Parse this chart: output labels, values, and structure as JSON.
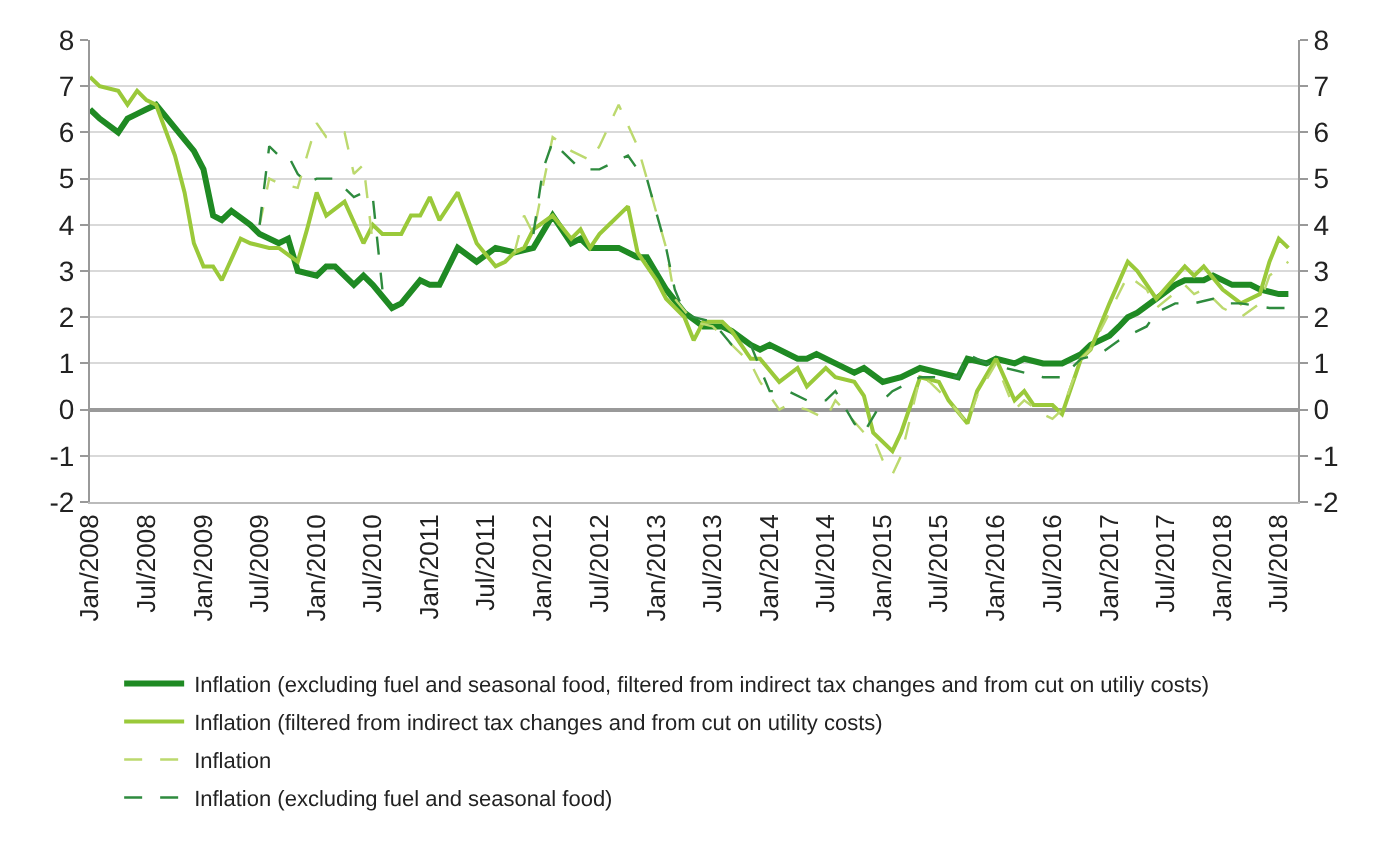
{
  "chart_data": {
    "type": "line",
    "legend": "bottom",
    "grid": "y",
    "marker": "none",
    "xlim": [
      "2008-01",
      "2018-09"
    ],
    "xticks": [
      {
        "value": "2008-01",
        "label": "Jan/2008"
      },
      {
        "value": "2008-07",
        "label": "Jul/2008"
      },
      {
        "value": "2009-01",
        "label": "Jan/2009"
      },
      {
        "value": "2009-07",
        "label": "Jul/2009"
      },
      {
        "value": "2010-01",
        "label": "Jan/2010"
      },
      {
        "value": "2010-07",
        "label": "Jul/2010"
      },
      {
        "value": "2011-01",
        "label": "Jan/2011"
      },
      {
        "value": "2011-07",
        "label": "Jul/2011"
      },
      {
        "value": "2012-01",
        "label": "Jan/2012"
      },
      {
        "value": "2012-07",
        "label": "Jul/2012"
      },
      {
        "value": "2013-01",
        "label": "Jan/2013"
      },
      {
        "value": "2013-07",
        "label": "Jul/2013"
      },
      {
        "value": "2014-01",
        "label": "Jan/2014"
      },
      {
        "value": "2014-07",
        "label": "Jul/2014"
      },
      {
        "value": "2015-01",
        "label": "Jan/2015"
      },
      {
        "value": "2015-07",
        "label": "Jul/2015"
      },
      {
        "value": "2016-01",
        "label": "Jan/2016"
      },
      {
        "value": "2016-07",
        "label": "Jul/2016"
      },
      {
        "value": "2017-01",
        "label": "Jan/2017"
      },
      {
        "value": "2017-07",
        "label": "Jul/2017"
      },
      {
        "value": "2018-01",
        "label": "Jan/2018"
      },
      {
        "value": "2018-07",
        "label": "Jul/2018"
      }
    ],
    "ylim": [
      -2,
      8
    ],
    "yticks": [
      -2,
      -1,
      0,
      1,
      2,
      3,
      4,
      5,
      6,
      7,
      8
    ],
    "y2lim": [
      -2,
      8
    ],
    "y2ticks": [
      -2,
      -1,
      0,
      1,
      2,
      3,
      4,
      5,
      6,
      7,
      8
    ],
    "series": [
      {
        "name": "Inflation (excluding fuel and seasonal food, filtered from indirect tax changes and from cut on utiliy costs)",
        "color": "#1f8a23",
        "line_style": "solid",
        "x": [
          "2008-01",
          "2008-02",
          "2008-04",
          "2008-05",
          "2008-06",
          "2008-07",
          "2008-08",
          "2008-10",
          "2008-12",
          "2009-01",
          "2009-02",
          "2009-03",
          "2009-04",
          "2009-06",
          "2009-07",
          "2009-09",
          "2009-10",
          "2009-11",
          "2010-01",
          "2010-02",
          "2010-03",
          "2010-05",
          "2010-06",
          "2010-07",
          "2010-09",
          "2010-10",
          "2010-12",
          "2011-01",
          "2011-02",
          "2011-04",
          "2011-06",
          "2011-08",
          "2011-10",
          "2011-12",
          "2012-02",
          "2012-04",
          "2012-05",
          "2012-06",
          "2012-07",
          "2012-09",
          "2012-11",
          "2012-12",
          "2013-02",
          "2013-04",
          "2013-06",
          "2013-08",
          "2013-09",
          "2013-11",
          "2013-12",
          "2014-01",
          "2014-04",
          "2014-05",
          "2014-06",
          "2014-08",
          "2014-10",
          "2014-11",
          "2015-01",
          "2015-03",
          "2015-05",
          "2015-07",
          "2015-09",
          "2015-10",
          "2015-12",
          "2016-01",
          "2016-03",
          "2016-04",
          "2016-06",
          "2016-08",
          "2016-10",
          "2016-11",
          "2017-01",
          "2017-02",
          "2017-03",
          "2017-04",
          "2017-06",
          "2017-08",
          "2017-09",
          "2017-11",
          "2017-12",
          "2018-02",
          "2018-04",
          "2018-05",
          "2018-07",
          "2018-08"
        ],
        "values": [
          6.5,
          6.3,
          6.0,
          6.3,
          6.4,
          6.5,
          6.6,
          6.1,
          5.6,
          5.2,
          4.2,
          4.1,
          4.3,
          4.0,
          3.8,
          3.6,
          3.7,
          3.0,
          2.9,
          3.1,
          3.1,
          2.7,
          2.9,
          2.7,
          2.2,
          2.3,
          2.8,
          2.7,
          2.7,
          3.5,
          3.2,
          3.5,
          3.4,
          3.5,
          4.2,
          3.6,
          3.7,
          3.5,
          3.5,
          3.5,
          3.3,
          3.3,
          2.6,
          2.1,
          1.8,
          1.8,
          1.7,
          1.4,
          1.3,
          1.4,
          1.1,
          1.1,
          1.2,
          1.0,
          0.8,
          0.9,
          0.6,
          0.7,
          0.9,
          0.8,
          0.7,
          1.1,
          1.0,
          1.1,
          1.0,
          1.1,
          1.0,
          1.0,
          1.2,
          1.4,
          1.6,
          1.8,
          2.0,
          2.1,
          2.4,
          2.7,
          2.8,
          2.8,
          2.9,
          2.7,
          2.7,
          2.6,
          2.5,
          2.5
        ]
      },
      {
        "name": "Inflation (filtered from indirect tax changes and from cut on utility costs)",
        "color": "#9ac93a",
        "line_style": "solid",
        "x": [
          "2008-01",
          "2008-02",
          "2008-04",
          "2008-05",
          "2008-06",
          "2008-07",
          "2008-08",
          "2008-10",
          "2008-11",
          "2008-12",
          "2009-01",
          "2009-02",
          "2009-03",
          "2009-05",
          "2009-06",
          "2009-08",
          "2009-09",
          "2009-11",
          "2009-12",
          "2010-01",
          "2010-02",
          "2010-04",
          "2010-06",
          "2010-07",
          "2010-08",
          "2010-10",
          "2010-11",
          "2010-12",
          "2011-01",
          "2011-02",
          "2011-04",
          "2011-06",
          "2011-08",
          "2011-09",
          "2011-10",
          "2011-11",
          "2011-12",
          "2012-02",
          "2012-04",
          "2012-05",
          "2012-06",
          "2012-07",
          "2012-08",
          "2012-10",
          "2012-11",
          "2013-01",
          "2013-02",
          "2013-04",
          "2013-05",
          "2013-06",
          "2013-08",
          "2013-09",
          "2013-11",
          "2013-12",
          "2014-02",
          "2014-04",
          "2014-05",
          "2014-07",
          "2014-08",
          "2014-10",
          "2014-11",
          "2014-12",
          "2015-02",
          "2015-03",
          "2015-05",
          "2015-07",
          "2015-08",
          "2015-10",
          "2015-11",
          "2016-01",
          "2016-03",
          "2016-04",
          "2016-05",
          "2016-07",
          "2016-08",
          "2016-10",
          "2016-11",
          "2017-01",
          "2017-03",
          "2017-04",
          "2017-06",
          "2017-09",
          "2017-10",
          "2017-11",
          "2018-01",
          "2018-03",
          "2018-05",
          "2018-06",
          "2018-07",
          "2018-08"
        ],
        "values": [
          7.2,
          7.0,
          6.9,
          6.6,
          6.9,
          6.7,
          6.6,
          5.5,
          4.7,
          3.6,
          3.1,
          3.1,
          2.8,
          3.7,
          3.6,
          3.5,
          3.5,
          3.2,
          3.9,
          4.7,
          4.2,
          4.5,
          3.6,
          4.0,
          3.8,
          3.8,
          4.2,
          4.2,
          4.6,
          4.1,
          4.7,
          3.6,
          3.1,
          3.2,
          3.4,
          3.5,
          3.9,
          4.2,
          3.7,
          3.9,
          3.5,
          3.8,
          4.0,
          4.4,
          3.4,
          2.8,
          2.4,
          2.0,
          1.5,
          1.9,
          1.9,
          1.7,
          1.1,
          1.1,
          0.6,
          0.9,
          0.5,
          0.9,
          0.7,
          0.6,
          0.3,
          -0.5,
          -0.9,
          -0.5,
          0.7,
          0.6,
          0.2,
          -0.3,
          0.4,
          1.1,
          0.2,
          0.4,
          0.1,
          0.1,
          -0.1,
          1.1,
          1.3,
          2.3,
          3.2,
          3.0,
          2.4,
          3.1,
          2.9,
          3.1,
          2.6,
          2.3,
          2.5,
          3.2,
          3.7,
          3.5
        ]
      },
      {
        "name": "Inflation",
        "color": "#bcd96e",
        "line_style": "dashed",
        "x": [
          "2009-07",
          "2009-08",
          "2009-09",
          "2009-11",
          "2009-12",
          "2010-01",
          "2010-02",
          "2010-04",
          "2010-05",
          "2010-06",
          "2010-07",
          "2011-01",
          "2011-10",
          "2011-11",
          "2011-12",
          "2012-02",
          "2012-04",
          "2012-06",
          "2012-07",
          "2012-09",
          "2012-11",
          "2012-12",
          "2013-02",
          "2013-03",
          "2013-05",
          "2013-07",
          "2013-09",
          "2013-11",
          "2013-12",
          "2014-02",
          "2014-03",
          "2014-05",
          "2014-07",
          "2014-08",
          "2014-11",
          "2014-12",
          "2015-01",
          "2015-02",
          "2015-03",
          "2015-05",
          "2015-06",
          "2015-08",
          "2015-10",
          "2015-11",
          "2016-01",
          "2016-03",
          "2016-04",
          "2016-06",
          "2016-07",
          "2016-08",
          "2016-10",
          "2016-11",
          "2017-01",
          "2017-03",
          "2017-05",
          "2017-06",
          "2017-09",
          "2017-10",
          "2017-11",
          "2018-01",
          "2018-03",
          "2018-05",
          "2018-06",
          "2018-08"
        ],
        "values": [
          4.0,
          5.0,
          4.9,
          4.8,
          5.5,
          6.2,
          5.9,
          6.0,
          5.1,
          5.3,
          3.6,
          null,
          3.4,
          4.2,
          3.8,
          5.9,
          5.6,
          5.4,
          5.7,
          6.6,
          5.7,
          5.0,
          3.5,
          2.4,
          1.9,
          1.8,
          1.4,
          1.0,
          0.6,
          0.0,
          0.1,
          0.0,
          -0.2,
          0.2,
          -0.5,
          -0.6,
          -1.1,
          -1.4,
          -1.0,
          0.7,
          0.6,
          0.2,
          -0.3,
          0.3,
          1.0,
          0.0,
          0.2,
          -0.1,
          -0.2,
          0.0,
          1.1,
          1.3,
          2.1,
          2.9,
          2.6,
          2.2,
          2.7,
          2.5,
          2.6,
          2.2,
          2.0,
          2.3,
          2.9,
          3.2
        ]
      },
      {
        "name": "Inflation (excluding fuel and seasonal food)",
        "color": "#2e8b3e",
        "line_style": "dashed",
        "x": [
          "2009-07",
          "2009-08",
          "2009-09",
          "2009-10",
          "2009-11",
          "2009-12",
          "2010-01",
          "2010-03",
          "2010-05",
          "2010-06",
          "2010-07",
          "2010-08",
          "2011-01",
          "2011-12",
          "2012-01",
          "2012-02",
          "2012-03",
          "2012-05",
          "2012-07",
          "2012-10",
          "2012-11",
          "2012-12",
          "2013-02",
          "2013-03",
          "2013-04",
          "2013-05",
          "2013-07",
          "2013-09",
          "2013-11",
          "2013-12",
          "2014-01",
          "2014-03",
          "2014-05",
          "2014-07",
          "2014-08",
          "2014-10",
          "2014-11",
          "2015-01",
          "2015-02",
          "2015-04",
          "2015-05",
          "2015-07",
          "2015-09",
          "2015-10",
          "2015-12",
          "2016-02",
          "2016-04",
          "2016-06",
          "2016-08",
          "2016-10",
          "2016-12",
          "2017-02",
          "2017-03",
          "2017-05",
          "2017-06",
          "2017-08",
          "2017-10",
          "2017-12",
          "2018-01",
          "2018-03",
          "2018-06",
          "2018-08"
        ],
        "values": [
          4.0,
          5.7,
          5.5,
          5.5,
          5.1,
          4.9,
          5.0,
          5.0,
          4.6,
          4.7,
          4.6,
          2.6,
          null,
          3.8,
          5.2,
          5.8,
          5.6,
          5.2,
          5.2,
          5.5,
          5.2,
          5.0,
          3.5,
          2.6,
          2.1,
          2.0,
          1.9,
          1.4,
          1.4,
          0.9,
          0.4,
          0.4,
          0.2,
          0.2,
          0.4,
          -0.3,
          -0.5,
          0.2,
          0.4,
          0.6,
          0.7,
          0.7,
          0.7,
          1.2,
          1.0,
          0.9,
          0.8,
          0.7,
          0.7,
          1.1,
          1.2,
          1.5,
          1.6,
          1.8,
          2.1,
          2.3,
          2.3,
          2.4,
          2.3,
          2.3,
          2.2,
          2.2
        ]
      }
    ]
  }
}
